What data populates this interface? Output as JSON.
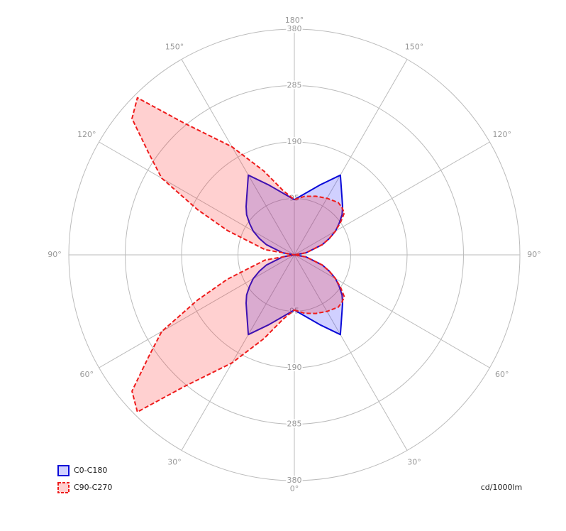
{
  "chart_data": {
    "type": "polar",
    "unit": "cd/1000lm",
    "gamma": [
      0,
      10,
      20,
      30,
      40,
      45,
      50,
      55,
      60,
      65,
      70,
      80,
      90,
      100,
      110,
      115,
      120,
      125,
      130,
      135,
      140,
      150,
      160,
      170,
      180
    ],
    "rlim": [
      0,
      380
    ],
    "rticks": [
      95,
      190,
      285,
      380
    ],
    "angle_ticks": [
      {
        "value": 0,
        "label": "0°"
      },
      {
        "value": 30,
        "label": "30°"
      },
      {
        "value": 60,
        "label": "60°"
      },
      {
        "value": 90,
        "label": "90°"
      },
      {
        "value": 120,
        "label": "120°"
      },
      {
        "value": 150,
        "label": "150°"
      },
      {
        "value": 180,
        "label": "180°"
      }
    ],
    "series": [
      {
        "name": "C0-C180",
        "color": "#0a0ad8",
        "fill": "rgba(40,40,255,0.22)",
        "dashed": false,
        "right_values": [
          93,
          105,
          125,
          155,
          125,
          115,
          105,
          92,
          80,
          65,
          50,
          20,
          0,
          20,
          50,
          65,
          80,
          92,
          105,
          115,
          125,
          155,
          125,
          105,
          93
        ],
        "left_values": [
          93,
          105,
          125,
          155,
          125,
          115,
          105,
          92,
          80,
          65,
          50,
          20,
          0,
          20,
          50,
          65,
          80,
          92,
          105,
          115,
          125,
          155,
          125,
          105,
          93
        ]
      },
      {
        "name": "C90-C270",
        "color": "#ee1c1c",
        "fill": "rgba(255,40,40,0.22)",
        "dashed": true,
        "right_values": [
          93,
          100,
          105,
          110,
          115,
          113,
          110,
          95,
          80,
          65,
          50,
          20,
          0,
          20,
          50,
          65,
          80,
          95,
          110,
          113,
          115,
          110,
          105,
          100,
          93
        ],
        "left_values": [
          93,
          110,
          150,
          210,
          290,
          374,
          357,
          300,
          258,
          180,
          120,
          50,
          0,
          50,
          120,
          180,
          258,
          300,
          357,
          374,
          290,
          210,
          150,
          110,
          93
        ]
      }
    ]
  }
}
